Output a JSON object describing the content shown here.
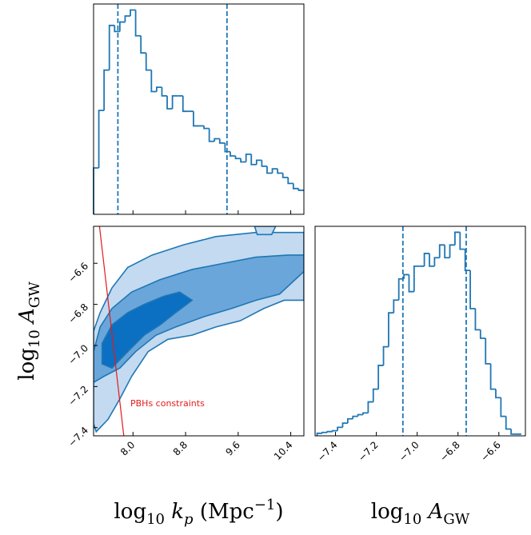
{
  "chart_data": [
    {
      "type": "histogram",
      "color": "#1f77b4",
      "bins": [
        7.4,
        7.48,
        7.56,
        7.64,
        7.72,
        7.8,
        7.88,
        7.96,
        8.04,
        8.12,
        8.2,
        8.28,
        8.36,
        8.44,
        8.52,
        8.6,
        8.68,
        8.76,
        8.84,
        8.92,
        9.0,
        9.08,
        9.16,
        9.24,
        9.32,
        9.4,
        9.48,
        9.56,
        9.64,
        9.72,
        9.8,
        9.88,
        9.96,
        10.04,
        10.12,
        10.2,
        10.28,
        10.36,
        10.44,
        10.52,
        10.6
      ],
      "values": [
        54,
        121,
        168,
        220,
        213,
        224,
        231,
        238,
        208,
        188,
        168,
        143,
        148,
        138,
        123,
        138,
        138,
        120,
        120,
        103,
        103,
        100,
        85,
        88,
        83,
        73,
        68,
        65,
        61,
        70,
        58,
        63,
        56,
        48,
        53,
        48,
        43,
        36,
        30,
        28
      ],
      "xlim": [
        7.4,
        10.6
      ],
      "ylim": [
        0,
        245
      ],
      "xticks": [
        8.0,
        8.8,
        9.6,
        10.4
      ],
      "quantiles": [
        7.77,
        9.43
      ]
    },
    {
      "type": "contour",
      "edge_color": "#1f77b4",
      "xlim": [
        7.4,
        10.6
      ],
      "ylim": [
        -7.44,
        -6.42
      ],
      "xticks": [
        {
          "value": 8,
          "label": "8.0"
        },
        8.8,
        9.6,
        10.4
      ],
      "yticks": [
        {
          "value": -7.4,
          "label": "−7.4"
        },
        {
          "value": -7.2,
          "label": "−7.2"
        },
        {
          "value": -7,
          "label": "−7.0"
        },
        {
          "value": -6.8,
          "label": "−6.8"
        },
        {
          "value": -6.6,
          "label": "−6.6"
        }
      ],
      "contours": [
        {
          "color": "#c3daf0",
          "x": [
            7.4,
            7.4,
            7.5,
            7.68,
            7.92,
            8.29,
            8.77,
            9.26,
            9.87,
            10.36,
            10.6,
            10.6,
            10.3,
            9.99,
            9.63,
            9.26,
            8.9,
            8.53,
            8.23,
            7.98,
            7.8,
            7.62,
            7.44
          ],
          "y": [
            -7.38,
            -6.93,
            -6.84,
            -6.72,
            -6.62,
            -6.56,
            -6.51,
            -6.47,
            -6.45,
            -6.45,
            -6.45,
            -6.78,
            -6.78,
            -6.82,
            -6.88,
            -6.91,
            -6.95,
            -6.97,
            -7.03,
            -7.15,
            -7.26,
            -7.36,
            -7.42
          ]
        },
        {
          "color": "#c3daf0",
          "x": [
            9.85,
            10.17,
            10.11,
            9.89
          ],
          "y": [
            -6.42,
            -6.42,
            -6.46,
            -6.46
          ]
        },
        {
          "color": "#6aa6da",
          "x": [
            7.4,
            7.4,
            7.5,
            7.68,
            7.98,
            8.41,
            8.9,
            9.38,
            9.87,
            10.36,
            10.6,
            10.6,
            10.23,
            9.87,
            9.5,
            9.08,
            8.65,
            8.35,
            8.04,
            7.8,
            7.56,
            7.4
          ],
          "y": [
            -7.17,
            -7.03,
            -6.91,
            -6.82,
            -6.74,
            -6.68,
            -6.63,
            -6.6,
            -6.57,
            -6.56,
            -6.56,
            -6.64,
            -6.75,
            -6.78,
            -6.82,
            -6.86,
            -6.91,
            -6.95,
            -7.03,
            -7.11,
            -7.15,
            -7.18
          ]
        },
        {
          "color": "#0b6fc2",
          "x": [
            7.53,
            7.53,
            7.68,
            7.92,
            8.17,
            8.47,
            8.71,
            8.9,
            8.65,
            8.41,
            8.17,
            7.92,
            7.68
          ],
          "y": [
            -7.09,
            -6.99,
            -6.9,
            -6.84,
            -6.8,
            -6.76,
            -6.74,
            -6.78,
            -6.84,
            -6.9,
            -6.95,
            -7.03,
            -7.11
          ]
        }
      ],
      "constraint": {
        "color": "#e41a1c",
        "x": [
          7.49,
          7.86
        ],
        "y": [
          -6.42,
          -7.44
        ],
        "text": "PBHs constraints"
      },
      "xlabel": [
        {
          "text": "log"
        },
        {
          "text": "10",
          "shift": "sub"
        },
        {
          "text": " k",
          "style": "italic"
        },
        {
          "text": "p",
          "shift": "sub",
          "style": "italic"
        },
        {
          "text": " (Mpc"
        },
        {
          "text": "−1",
          "shift": "sup"
        },
        {
          "text": ")"
        }
      ],
      "ylabel": [
        {
          "text": "log"
        },
        {
          "text": "10",
          "shift": "sub"
        },
        {
          "text": " A",
          "style": "italic"
        },
        {
          "text": "GW",
          "shift": "sub"
        }
      ]
    },
    {
      "type": "histogram",
      "color": "#1f77b4",
      "bins": [
        -7.49,
        -7.465,
        -7.44,
        -7.415,
        -7.39,
        -7.365,
        -7.34,
        -7.315,
        -7.29,
        -7.265,
        -7.24,
        -7.215,
        -7.19,
        -7.165,
        -7.14,
        -7.115,
        -7.09,
        -7.065,
        -7.04,
        -7.015,
        -6.99,
        -6.965,
        -6.94,
        -6.915,
        -6.89,
        -6.865,
        -6.84,
        -6.815,
        -6.79,
        -6.765,
        -6.74,
        -6.715,
        -6.69,
        -6.665,
        -6.64,
        -6.615,
        -6.59,
        -6.565,
        -6.54,
        -6.515,
        -6.49
      ],
      "values": [
        3,
        4,
        5,
        6,
        10,
        15,
        20,
        23,
        25,
        27,
        40,
        55,
        83,
        105,
        145,
        160,
        185,
        190,
        170,
        200,
        200,
        215,
        200,
        210,
        225,
        210,
        225,
        240,
        220,
        195,
        150,
        125,
        115,
        85,
        55,
        45,
        23,
        8,
        2,
        2
      ],
      "xlim": [
        -7.5,
        -6.47
      ],
      "ylim": [
        0,
        247
      ],
      "xticks": [
        {
          "value": -7.4,
          "label": "−7.4"
        },
        {
          "value": -7.2,
          "label": "−7.2"
        },
        {
          "value": -7,
          "label": "−7.0"
        },
        {
          "value": -6.8,
          "label": "−6.8"
        },
        {
          "value": -6.6,
          "label": "−6.6"
        }
      ],
      "quantiles": [
        -7.07,
        -6.76
      ],
      "xlabel": [
        {
          "text": "log"
        },
        {
          "text": "10",
          "shift": "sub"
        },
        {
          "text": " A",
          "style": "italic"
        },
        {
          "text": "GW",
          "shift": "sub"
        }
      ]
    }
  ]
}
